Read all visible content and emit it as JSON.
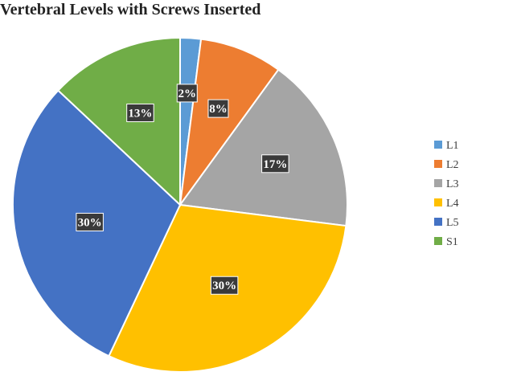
{
  "chart_data": {
    "type": "pie",
    "title": "Vertebral Levels with Screws Inserted",
    "slices": [
      {
        "label": "L1",
        "value": 2,
        "display": "2%",
        "color": "#5B9BD5"
      },
      {
        "label": "L2",
        "value": 8,
        "display": "8%",
        "color": "#ED7D31"
      },
      {
        "label": "L3",
        "value": 17,
        "display": "17%",
        "color": "#A5A5A5"
      },
      {
        "label": "L4",
        "value": 30,
        "display": "30%",
        "color": "#FFC000"
      },
      {
        "label": "L5",
        "value": 30,
        "display": "30%",
        "color": "#4472C4"
      },
      {
        "label": "S1",
        "value": 13,
        "display": "13%",
        "color": "#70AD47"
      }
    ],
    "legend_position": "right",
    "data_label_background": "#3a3a3a"
  }
}
